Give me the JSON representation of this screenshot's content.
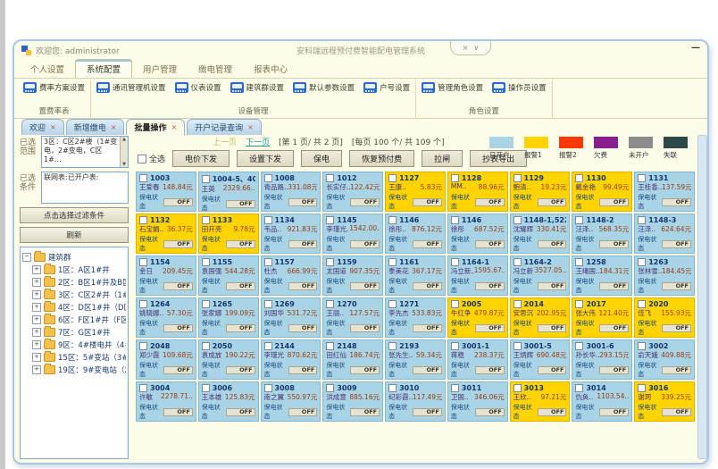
{
  "window": {
    "title_left": "欢迎您: administrator",
    "title_center": "安科瑞远程预付费智能配电管理系统",
    "minimize_glyph": "—",
    "pill_glyphs": [
      "×",
      "∨"
    ]
  },
  "menu": {
    "tabs": [
      {
        "label": "个人设置",
        "active": false
      },
      {
        "label": "系统配置",
        "active": true
      },
      {
        "label": "用户管理",
        "active": false
      },
      {
        "label": "缴电管理",
        "active": false
      },
      {
        "label": "报表中心",
        "active": false
      }
    ]
  },
  "ribbon": {
    "groups": [
      {
        "label": "置费率表",
        "buttons": [
          "费率方案设置"
        ]
      },
      {
        "label": "设备管理",
        "buttons": [
          "通讯管理机设置",
          "仪表设置",
          "建筑群设置",
          "默认参数设置",
          "户号设置"
        ]
      },
      {
        "label": "角色设置",
        "buttons": [
          "管理角色设置",
          "操作员设置"
        ]
      }
    ]
  },
  "doc_tabs": [
    {
      "label": "欢迎",
      "active": false
    },
    {
      "label": "新增缴电",
      "active": false
    },
    {
      "label": "批量操作",
      "active": true
    },
    {
      "label": "开户记录查询",
      "active": false
    }
  ],
  "sidebar": {
    "range_label": "已选范围",
    "range_text": "3区：C区2#楼（1#变电，2#变电，C区1#…",
    "condition_label": "已选条件",
    "condition_text": "联网表:已开户表:",
    "filter_button": "点击选择过滤条件",
    "refresh_button": "刷新",
    "tree": {
      "root": "建筑群",
      "items": [
        "1区：A区1#井",
        "2区：B区1#井及B区1#",
        "3区：C区2#井（1#变",
        "4区：D区1#井（D区1",
        "6区：F区1#井（F区1#",
        "7区：G区1#井",
        "9区：4#楼电井（4#楼",
        "15区：5#变站（3#变",
        "19区：9#变电站（2#"
      ]
    }
  },
  "pagination": {
    "prev": "上一页",
    "next": "下一页",
    "page_info": "[第  1 页/ 共  2 页]",
    "per_page_info": "[每页 100 个/ 共  109 个]"
  },
  "actions": {
    "select_all": "全选",
    "buttons": [
      "电价下发",
      "设置下发",
      "保电",
      "恢复预付费",
      "拉闸",
      "抄表导出"
    ]
  },
  "legend": {
    "items": [
      {
        "label": "已开户",
        "color": "#a9d4e6"
      },
      {
        "label": "报警1",
        "color": "#ffd400"
      },
      {
        "label": "报警2",
        "color": "#ff3800"
      },
      {
        "label": "欠费",
        "color": "#871f8f"
      },
      {
        "label": "未开户",
        "color": "#8c8c8c"
      },
      {
        "label": "失联",
        "color": "#2c4a4a"
      }
    ]
  },
  "card_labels": {
    "baodian": "保电状态",
    "hezha": "合闸状态",
    "off": "OFF",
    "on": "ON"
  },
  "card_colors": {
    "open": "#a9d4e6",
    "alarm1": "#ffd400"
  },
  "cards": [
    {
      "id": "1003",
      "name": "王爱春",
      "balance": "148.84元",
      "state": "open"
    },
    {
      "id": "1004-5、40…",
      "name": "王英",
      "balance": "2329.66..",
      "state": "open"
    },
    {
      "id": "1008",
      "name": "青品路..",
      "balance": "331.08元",
      "state": "open"
    },
    {
      "id": "1012",
      "name": "长实仔..",
      "balance": "122.42元",
      "state": "open"
    },
    {
      "id": "1127",
      "name": "王康..",
      "balance": "5.83元",
      "state": "alarm1"
    },
    {
      "id": "1128",
      "name": "MM..",
      "balance": "88.96元",
      "state": "alarm1"
    },
    {
      "id": "1129",
      "name": "鲍清..",
      "balance": "19.23元",
      "state": "alarm1"
    },
    {
      "id": "1130",
      "name": "戴金艳",
      "balance": "99.49元",
      "state": "alarm1"
    },
    {
      "id": "1131",
      "name": "王桂香..",
      "balance": "137.59元",
      "state": "open"
    },
    {
      "id": "1132",
      "name": "石宝娟..",
      "balance": "36.37元",
      "state": "alarm1"
    },
    {
      "id": "1133",
      "name": "田开亮",
      "balance": "9.78元",
      "state": "alarm1"
    },
    {
      "id": "1134",
      "name": "韦品..",
      "balance": "921.83元",
      "state": "open"
    },
    {
      "id": "1145",
      "name": "李瑾光..",
      "balance": "1542.00..",
      "state": "open"
    },
    {
      "id": "1146",
      "name": "徐彤..",
      "balance": "876.12元",
      "state": "open"
    },
    {
      "id": "1146",
      "name": "徐彤",
      "balance": "687.52元",
      "state": "open"
    },
    {
      "id": "1148-1,522",
      "name": "沈耀辉",
      "balance": "330.41元",
      "state": "open"
    },
    {
      "id": "1148-2",
      "name": "汪泽..",
      "balance": "568.35元",
      "state": "open"
    },
    {
      "id": "1148-3",
      "name": "汪泽..",
      "balance": "624.64元",
      "state": "open"
    },
    {
      "id": "1154",
      "name": "金日",
      "balance": "209.45元",
      "state": "open"
    },
    {
      "id": "1155",
      "name": "袁国强",
      "balance": "544.28元",
      "state": "open"
    },
    {
      "id": "1157",
      "name": "杜杰",
      "balance": "666.99元",
      "state": "open"
    },
    {
      "id": "1159",
      "name": "太国道",
      "balance": "907.35元",
      "state": "open"
    },
    {
      "id": "1161",
      "name": "季美花",
      "balance": "367.17元",
      "state": "open"
    },
    {
      "id": "1164-1",
      "name": "冯立新..",
      "balance": "1595.67..",
      "state": "open"
    },
    {
      "id": "1164-2",
      "name": "冯立新",
      "balance": "3527.05..",
      "state": "open"
    },
    {
      "id": "1258",
      "name": "王绳国..",
      "balance": "184.31元",
      "state": "open"
    },
    {
      "id": "1263",
      "name": "张林雪..",
      "balance": "184.45元",
      "state": "open"
    },
    {
      "id": "1264",
      "name": "姚晓娜..",
      "balance": "57.30元",
      "state": "open"
    },
    {
      "id": "1265",
      "name": "张家娜",
      "balance": "199.09元",
      "state": "open"
    },
    {
      "id": "1269",
      "name": "刘国华",
      "balance": "531.72元",
      "state": "open"
    },
    {
      "id": "1270",
      "name": "王丽..",
      "balance": "127.57元",
      "state": "open"
    },
    {
      "id": "1271",
      "name": "李先杰",
      "balance": "533.83元",
      "state": "open"
    },
    {
      "id": "2005",
      "name": "牛红争",
      "balance": "479.87元",
      "state": "alarm1"
    },
    {
      "id": "2014",
      "name": "安思沉",
      "balance": "202.95元",
      "state": "alarm1"
    },
    {
      "id": "2017",
      "name": "张大伟",
      "balance": "121.40元",
      "state": "alarm1"
    },
    {
      "id": "2020",
      "name": "佳飞",
      "balance": "155.93元",
      "state": "alarm1"
    },
    {
      "id": "2048",
      "name": "郑少霞",
      "balance": "109.68元",
      "state": "open"
    },
    {
      "id": "2050",
      "name": "袁成放",
      "balance": "190.22元",
      "state": "open"
    },
    {
      "id": "2144",
      "name": "李瑾光",
      "balance": "870.62元",
      "state": "open"
    },
    {
      "id": "2148",
      "name": "田红仙",
      "balance": "186.74元",
      "state": "open"
    },
    {
      "id": "2193",
      "name": "张先生..",
      "balance": "59.34元",
      "state": "open"
    },
    {
      "id": "3001-1",
      "name": "蒋稳",
      "balance": "238.37元",
      "state": "open"
    },
    {
      "id": "3001-5",
      "name": "王炳辉",
      "balance": "690.48元",
      "state": "open"
    },
    {
      "id": "3001-6",
      "name": "孙长华..",
      "balance": "293.15元",
      "state": "open"
    },
    {
      "id": "3002",
      "name": "俞天娥",
      "balance": "409.88元",
      "state": "open"
    },
    {
      "id": "3004",
      "name": "许敏",
      "balance": "2278.71..",
      "state": "open"
    },
    {
      "id": "3006",
      "name": "王本雄",
      "balance": "125.83元",
      "state": "open"
    },
    {
      "id": "3008",
      "name": "南之翼",
      "balance": "550.97元",
      "state": "open"
    },
    {
      "id": "3009",
      "name": "洪成意",
      "balance": "885.16元",
      "state": "open"
    },
    {
      "id": "3010",
      "name": "纪彩霞..",
      "balance": "117.49元",
      "state": "open"
    },
    {
      "id": "3011",
      "name": "卫国..",
      "balance": "346.06元",
      "state": "open"
    },
    {
      "id": "3013",
      "name": "王欣..",
      "balance": "97.21元",
      "state": "alarm1"
    },
    {
      "id": "3014",
      "name": "仇奂..",
      "balance": "1103.54..",
      "state": "open"
    },
    {
      "id": "3016",
      "name": "谢珂",
      "balance": "339.25元",
      "state": "alarm1"
    }
  ]
}
